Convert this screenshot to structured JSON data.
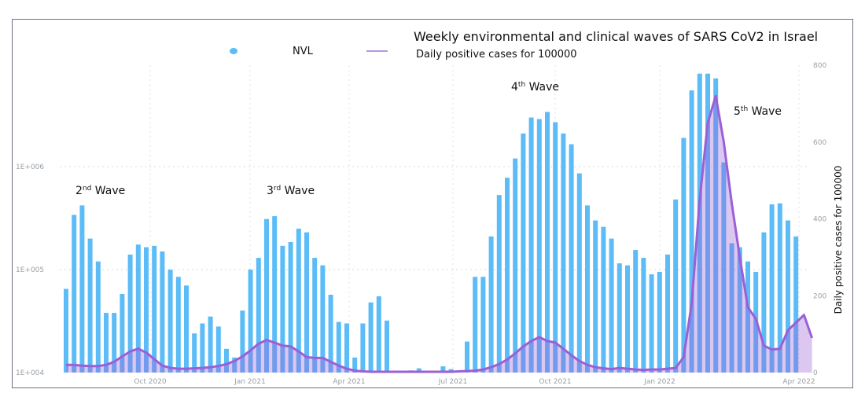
{
  "chart_data": {
    "type": "bar",
    "title": "Weekly environmental and clinical waves of SARS CoV2 in Israel",
    "legend": {
      "placement": "top-center",
      "entries": [
        {
          "name": "NVL",
          "marker": "dot",
          "color": "#5bbcf7"
        },
        {
          "name": "Daily positive cases for 100000",
          "marker": "line",
          "color": "#9b5fd6"
        }
      ]
    },
    "xlabel": "",
    "x_ticks": [
      "Oct 2020",
      "Jan 2021",
      "Apr 2021",
      "Jul 2021",
      "Oct 2021",
      "Jan 2022",
      "Apr 2022"
    ],
    "y_left": {
      "label": "",
      "scale": "log",
      "ticks": [
        "1E+004",
        "1E+005",
        "1E+006"
      ],
      "range": [
        10000,
        2000000
      ]
    },
    "y_right": {
      "label": "Daily positive cases for 100000",
      "scale": "linear",
      "ticks": [
        "0",
        "200",
        "400",
        "600",
        "800"
      ],
      "range": [
        0,
        800
      ]
    },
    "grid": true,
    "annotations": [
      {
        "text": "2",
        "sup": "nd",
        "rest": " Wave"
      },
      {
        "text": "3",
        "sup": "rd",
        "rest": " Wave"
      },
      {
        "text": "4",
        "sup": "th",
        "rest": " Wave"
      },
      {
        "text": "5",
        "sup": "th",
        "rest": " Wave"
      }
    ],
    "series": [
      {
        "name": "NVL",
        "type": "bar",
        "axis": "left",
        "color": "#5bbcf7",
        "values": [
          65000,
          340000,
          420000,
          200000,
          120000,
          38000,
          38000,
          58000,
          140000,
          175000,
          165000,
          170000,
          150000,
          100000,
          85000,
          70000,
          24000,
          30000,
          35000,
          28000,
          17000,
          14000,
          40000,
          100000,
          130000,
          310000,
          330000,
          170000,
          185000,
          250000,
          230000,
          130000,
          110000,
          57000,
          31000,
          30000,
          14000,
          30000,
          48000,
          55000,
          32000,
          0,
          0,
          10500,
          11000,
          0,
          0,
          11500,
          10800,
          0,
          20000,
          85000,
          85000,
          210000,
          530000,
          780000,
          1200000,
          2100000,
          3000000,
          2900000,
          3400000,
          2700000,
          2100000,
          1650000,
          860000,
          420000,
          300000,
          260000,
          200000,
          115000,
          110000,
          155000,
          130000,
          90000,
          95000,
          140000,
          480000,
          1900000,
          5500000,
          8000000,
          8000000,
          7200000,
          1100000,
          180000,
          165000,
          120000,
          95000,
          230000,
          430000,
          440000,
          300000,
          210000
        ]
      },
      {
        "name": "Daily positive cases for 100000",
        "type": "area-line",
        "axis": "right",
        "color": "#9b5fd6",
        "values": [
          20,
          20,
          18,
          17,
          17,
          20,
          28,
          42,
          55,
          62,
          52,
          35,
          18,
          12,
          10,
          10,
          11,
          12,
          14,
          17,
          22,
          30,
          42,
          58,
          75,
          85,
          78,
          70,
          68,
          55,
          40,
          38,
          38,
          28,
          18,
          10,
          5,
          3,
          2,
          2,
          2,
          2,
          2,
          2,
          2,
          2,
          2,
          2,
          2,
          3,
          4,
          5,
          8,
          14,
          22,
          34,
          50,
          68,
          82,
          92,
          82,
          78,
          62,
          45,
          30,
          20,
          14,
          11,
          9,
          12,
          10,
          8,
          7,
          8,
          8,
          10,
          12,
          40,
          180,
          450,
          650,
          720,
          600,
          440,
          300,
          170,
          140,
          70,
          60,
          62,
          110,
          130,
          150,
          90
        ]
      }
    ]
  }
}
